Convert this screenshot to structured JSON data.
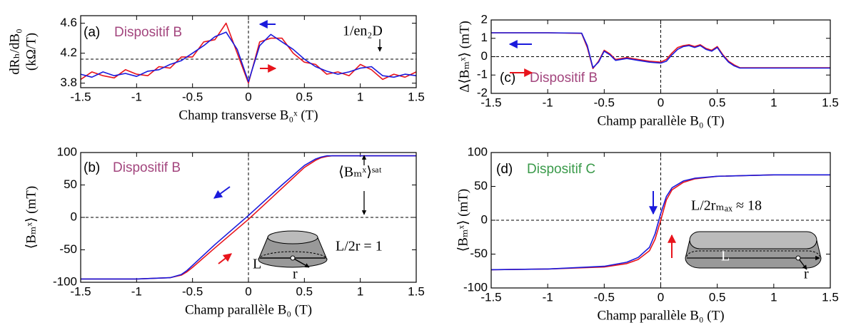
{
  "chart_data": [
    {
      "type": "line",
      "panel_label": "(a)",
      "device": "Dispositif B",
      "device_color": "#a3467e",
      "xlabel": "Champ transverse B₀ˣ (T)",
      "ylabel": [
        "dRₕ/dB₀",
        "(kΩ/T)"
      ],
      "notes": [
        "1/en₂D"
      ],
      "xlim": [
        -1.5,
        1.5
      ],
      "ylim": [
        3.74,
        4.7
      ],
      "xticks": [
        -1.5,
        -1,
        -0.5,
        0,
        0.5,
        1,
        1.5
      ],
      "yticks": [
        3.8,
        4.2,
        4.6
      ],
      "hline": 4.12,
      "vline": 0,
      "x": [
        -1.5,
        -1.4,
        -1.3,
        -1.2,
        -1.1,
        -1.0,
        -0.9,
        -0.8,
        -0.7,
        -0.6,
        -0.5,
        -0.4,
        -0.3,
        -0.2,
        -0.1,
        0,
        0.1,
        0.2,
        0.3,
        0.4,
        0.5,
        0.6,
        0.7,
        0.8,
        0.9,
        1.0,
        1.1,
        1.2,
        1.3,
        1.4,
        1.5
      ],
      "series": [
        {
          "color": "#e8141c",
          "values": [
            3.85,
            3.95,
            3.9,
            3.87,
            3.98,
            3.92,
            3.9,
            4.02,
            4.0,
            4.15,
            4.15,
            4.35,
            4.38,
            4.6,
            4.2,
            3.8,
            4.35,
            4.4,
            4.4,
            4.2,
            4.08,
            4.05,
            3.92,
            3.95,
            3.9,
            4.05,
            3.98,
            3.85,
            3.92,
            3.88,
            3.95
          ]
        },
        {
          "color": "#1a1adc",
          "values": [
            3.92,
            3.88,
            3.95,
            3.9,
            3.93,
            3.89,
            3.96,
            3.98,
            4.05,
            4.1,
            4.2,
            4.3,
            4.42,
            4.48,
            4.25,
            3.82,
            4.3,
            4.45,
            4.35,
            4.25,
            4.12,
            4.02,
            3.96,
            3.92,
            3.95,
            4.0,
            4.02,
            3.9,
            3.88,
            3.92,
            3.9
          ]
        }
      ]
    },
    {
      "type": "line",
      "panel_label": "(c)",
      "device": "Dispositif B",
      "device_color": "#a3467e",
      "xlabel": "Champ parallèle B₀ (T)",
      "ylabel": [
        "Δ⟨Bₘˣ⟩ (mT)"
      ],
      "notes": [],
      "xlim": [
        -1.5,
        1.5
      ],
      "ylim": [
        -2,
        2
      ],
      "xticks": [
        -1.5,
        -1,
        -0.5,
        0,
        0.5,
        1,
        1.5
      ],
      "yticks": [
        -2,
        -1,
        0,
        1,
        2
      ],
      "hline": 0,
      "vline": 0,
      "x": [
        -1.5,
        -1.0,
        -0.7,
        -0.65,
        -0.6,
        -0.55,
        -0.5,
        -0.45,
        -0.4,
        -0.3,
        -0.2,
        -0.1,
        0,
        0.05,
        0.1,
        0.15,
        0.2,
        0.25,
        0.3,
        0.35,
        0.4,
        0.45,
        0.5,
        0.55,
        0.6,
        0.65,
        0.7,
        1.0,
        1.5
      ],
      "series": [
        {
          "color": "#e8141c",
          "values": [
            1.3,
            1.3,
            1.27,
            0.5,
            -0.65,
            -0.25,
            0.35,
            0.15,
            -0.15,
            -0.05,
            -0.15,
            -0.25,
            -0.3,
            -0.15,
            0.2,
            0.5,
            0.6,
            0.65,
            0.55,
            0.65,
            0.45,
            0.35,
            0.55,
            0.1,
            -0.25,
            -0.45,
            -0.6,
            -0.6,
            -0.6
          ]
        },
        {
          "color": "#1a1adc",
          "values": [
            1.3,
            1.3,
            1.28,
            0.6,
            -0.6,
            -0.3,
            0.3,
            0.1,
            -0.2,
            -0.1,
            -0.2,
            -0.3,
            -0.35,
            -0.25,
            0.1,
            0.4,
            0.55,
            0.6,
            0.5,
            0.6,
            0.4,
            0.3,
            0.5,
            0.05,
            -0.3,
            -0.5,
            -0.62,
            -0.62,
            -0.62
          ]
        }
      ]
    },
    {
      "type": "line",
      "panel_label": "(b)",
      "device": "Dispositif B",
      "device_color": "#a3467e",
      "xlabel": "Champ parallèle B₀ (T)",
      "ylabel": [
        "⟨Bₘˣ⟩ (mT)"
      ],
      "notes": [
        "⟨Bₘˣ⟩ˢᵃᵗ",
        "L/2r = 1",
        "L",
        "r"
      ],
      "xlim": [
        -1.5,
        1.5
      ],
      "ylim": [
        -100,
        100
      ],
      "xticks": [
        -1.5,
        -1,
        -0.5,
        0,
        0.5,
        1,
        1.5
      ],
      "yticks": [
        -100,
        -50,
        0,
        50,
        100
      ],
      "hline": 0,
      "vline": 0,
      "x": [
        -1.5,
        -1.0,
        -0.7,
        -0.6,
        -0.55,
        -0.5,
        -0.3,
        0,
        0.3,
        0.5,
        0.6,
        0.65,
        0.7,
        0.75,
        1.0,
        1.5
      ],
      "series": [
        {
          "color": "#e8141c",
          "values": [
            -95,
            -95,
            -93,
            -89,
            -84,
            -77,
            -47,
            -3,
            45,
            77,
            88,
            92,
            94,
            95,
            95,
            95
          ]
        },
        {
          "color": "#1a1adc",
          "values": [
            -95,
            -95,
            -93,
            -88,
            -82,
            -74,
            -42,
            3,
            50,
            80,
            90,
            93,
            95,
            95,
            95,
            95
          ]
        }
      ]
    },
    {
      "type": "line",
      "panel_label": "(d)",
      "device": "Dispositif C",
      "device_color": "#3a9a4a",
      "xlabel": "Champ parallèle B₀ (T)",
      "ylabel": [
        "⟨Bₘˣ⟩ (mT)"
      ],
      "notes": [
        "L/2rₘₐₓ ≈ 18",
        "L",
        "r"
      ],
      "xlim": [
        -1.5,
        1.5
      ],
      "ylim": [
        -100,
        100
      ],
      "xticks": [
        -1.5,
        -1,
        -0.5,
        0,
        0.5,
        1,
        1.5
      ],
      "yticks": [
        -100,
        -50,
        0,
        50,
        100
      ],
      "hline": 0,
      "vline": 0,
      "x": [
        -1.5,
        -1.0,
        -0.5,
        -0.3,
        -0.2,
        -0.1,
        -0.05,
        0,
        0.05,
        0.1,
        0.2,
        0.3,
        0.5,
        1.0,
        1.5
      ],
      "series": [
        {
          "color": "#e8141c",
          "values": [
            -73,
            -72,
            -69,
            -64,
            -58,
            -45,
            -28,
            0,
            30,
            45,
            56,
            61,
            65,
            67,
            67
          ]
        },
        {
          "color": "#1a1adc",
          "values": [
            -73,
            -72,
            -68,
            -62,
            -55,
            -40,
            -20,
            10,
            35,
            48,
            58,
            62,
            65,
            67,
            67
          ]
        }
      ]
    }
  ]
}
